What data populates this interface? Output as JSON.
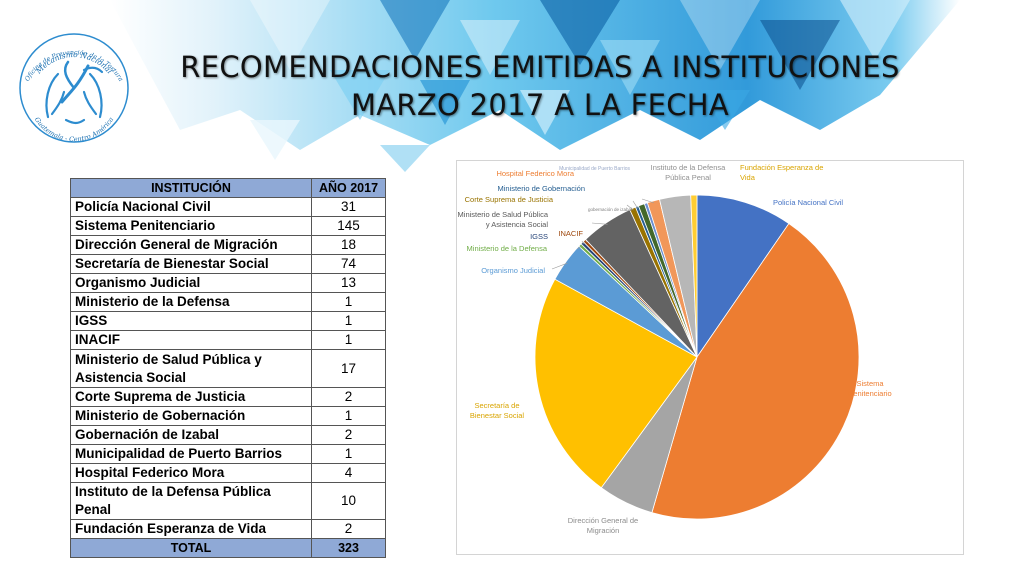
{
  "header": {
    "title_line1": "RECOMENDACIONES EMITIDAS A INSTITUCIONES",
    "title_line2": "MARZO 2017 A LA FECHA"
  },
  "logo": {
    "arc_top": "Mecanismo Nacional",
    "arc_mid": "Oficina de Prevención de la Tortura",
    "arc_bottom": "Guatemala - Centro América"
  },
  "table": {
    "headers": [
      "INSTITUCIÓN",
      "AÑO 2017"
    ],
    "rows": [
      {
        "name": "Policía Nacional Civil",
        "value": "31"
      },
      {
        "name": "Sistema Penitenciario",
        "value": "145"
      },
      {
        "name": "Dirección General de Migración",
        "value": "18"
      },
      {
        "name": "Secretaría de Bienestar Social",
        "value": "74"
      },
      {
        "name": "Organismo Judicial",
        "value": "13"
      },
      {
        "name": "Ministerio de la Defensa",
        "value": "1"
      },
      {
        "name": "IGSS",
        "value": "1"
      },
      {
        "name": "INACIF",
        "value": "1"
      },
      {
        "name": "Ministerio de Salud Pública y Asistencia Social",
        "value": "17"
      },
      {
        "name": "Corte Suprema de Justicia",
        "value": "2"
      },
      {
        "name": "Ministerio de Gobernación",
        "value": "1"
      },
      {
        "name": "Gobernación de Izabal",
        "value": "2"
      },
      {
        "name": "Municipalidad de Puerto Barrios",
        "value": "1"
      },
      {
        "name": "Hospital Federico Mora",
        "value": "4"
      },
      {
        "name": "Instituto de la Defensa Pública Penal",
        "value": "10"
      },
      {
        "name": "Fundación Esperanza de Vida",
        "value": "2"
      }
    ],
    "total_label": "TOTAL",
    "total_value": "323"
  },
  "chart_data": {
    "type": "pie",
    "title": "",
    "slices": [
      {
        "label": "Policía Nacional Civil",
        "value": 31,
        "color": "#4472c4"
      },
      {
        "label": "Sistema Penitenciario",
        "value": 145,
        "color": "#ed7d31"
      },
      {
        "label": "Dirección General de Migración",
        "value": 18,
        "color": "#a5a5a5"
      },
      {
        "label": "Secretaría de Bienestar Social",
        "value": 74,
        "color": "#ffc000"
      },
      {
        "label": "Organismo Judicial",
        "value": 13,
        "color": "#5b9bd5"
      },
      {
        "label": "Ministerio de la Defensa",
        "value": 1,
        "color": "#70ad47"
      },
      {
        "label": "IGSS",
        "value": 1,
        "color": "#264478"
      },
      {
        "label": "INACIF",
        "value": 1,
        "color": "#9e480e"
      },
      {
        "label": "Ministerio de Salud Pública y Asistencia Social",
        "value": 17,
        "color": "#636363"
      },
      {
        "label": "Corte Suprema de Justicia",
        "value": 2,
        "color": "#997300"
      },
      {
        "label": "Ministerio de Gobernación",
        "value": 1,
        "color": "#255e91"
      },
      {
        "label": "gobernación de izabal",
        "value": 2,
        "color": "#43682b"
      },
      {
        "label": "Municipalidad de Puerto Barrios",
        "value": 1,
        "color": "#698ed0"
      },
      {
        "label": "Hospital Federico Mora",
        "value": 4,
        "color": "#f1975a"
      },
      {
        "label": "Instituto de la Defensa Pública Penal",
        "value": 10,
        "color": "#b7b7b7"
      },
      {
        "label": "Fundación Esperanza de Vida",
        "value": 2,
        "color": "#ffcd33"
      }
    ],
    "display_labels": [
      [
        "Policía Nacional Civil"
      ],
      [
        "Sistema",
        "Penitenciario"
      ],
      [
        "Dirección General de",
        "Migración"
      ],
      [
        "Secretaría de",
        "Bienestar Social"
      ],
      [
        "Organismo Judicial"
      ],
      [
        "Ministerio de la Defensa"
      ],
      [
        "IGSS"
      ],
      [
        "INACIF"
      ],
      [
        "Ministerio de Salud Pública",
        "y Asistencia Social"
      ],
      [
        "Corte Suprema de Justicia"
      ],
      [
        "Ministerio de Gobernación"
      ],
      [
        "gobernación de izabal"
      ],
      [
        "Municipalidad de Puerto Barrios"
      ],
      [
        "Hospital Federico Mora"
      ],
      [
        "Instituto de la Defensa",
        "Pública Penal"
      ],
      [
        "Fundación Esperanza de",
        "Vida"
      ]
    ],
    "legend": "none"
  }
}
